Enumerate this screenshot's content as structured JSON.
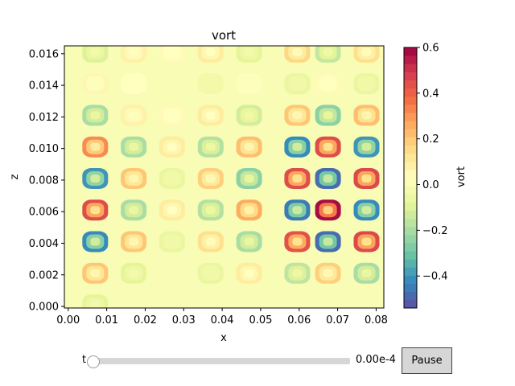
{
  "chart_data": {
    "type": "heatmap",
    "title": "vort",
    "xlabel": "x",
    "ylabel": "z",
    "xlim": [
      -0.001,
      0.082
    ],
    "ylim": [
      -0.0001,
      0.0165
    ],
    "x_ticks": [
      "0.00",
      "0.01",
      "0.02",
      "0.03",
      "0.04",
      "0.05",
      "0.06",
      "0.07",
      "0.08"
    ],
    "x_tick_values": [
      0.0,
      0.01,
      0.02,
      0.03,
      0.04,
      0.05,
      0.06,
      0.07,
      0.08
    ],
    "y_ticks": [
      "0.000",
      "0.002",
      "0.004",
      "0.006",
      "0.008",
      "0.010",
      "0.012",
      "0.014",
      "0.016"
    ],
    "y_tick_values": [
      0.0,
      0.002,
      0.004,
      0.006,
      0.008,
      0.01,
      0.012,
      0.014,
      0.016
    ],
    "colorbar": {
      "label": "vort",
      "colormap": "Spectral_r",
      "vmin": -0.54,
      "vmax": 0.6,
      "ticks": [
        "0.6",
        "0.4",
        "0.2",
        "0.0",
        "−0.2",
        "−0.4"
      ],
      "tick_values": [
        0.6,
        0.4,
        0.2,
        0.0,
        -0.2,
        -0.4
      ]
    },
    "cells": {
      "columns_x": [
        0.007,
        0.017,
        0.027,
        0.037,
        0.047,
        0.0595,
        0.0675,
        0.0775
      ],
      "rows_z": [
        0.0161,
        0.0141,
        0.0121,
        0.0101,
        0.0081,
        0.0061,
        0.0041,
        0.0021,
        0.0001
      ],
      "values": [
        [
          -0.1,
          0.08,
          0.05,
          0.1,
          -0.08,
          0.16,
          -0.15,
          0.14
        ],
        [
          0.06,
          0.03,
          0.0,
          -0.03,
          0.02,
          -0.06,
          0.05,
          -0.06
        ],
        [
          -0.2,
          0.08,
          0.05,
          0.1,
          -0.12,
          0.2,
          -0.25,
          0.22
        ],
        [
          0.32,
          -0.2,
          0.1,
          -0.18,
          0.22,
          -0.42,
          0.45,
          -0.4
        ],
        [
          -0.4,
          0.2,
          -0.06,
          0.18,
          -0.25,
          0.45,
          -0.48,
          0.46
        ],
        [
          0.45,
          -0.2,
          0.1,
          -0.18,
          0.26,
          -0.45,
          0.58,
          -0.42
        ],
        [
          -0.42,
          0.2,
          -0.06,
          0.14,
          -0.2,
          0.44,
          -0.48,
          0.46
        ],
        [
          0.2,
          -0.08,
          0.0,
          -0.06,
          0.1,
          -0.16,
          0.18,
          -0.2
        ],
        [
          -0.08,
          0.0,
          0.0,
          0.0,
          0.0,
          0.0,
          0.0,
          0.0
        ]
      ]
    }
  },
  "controls": {
    "slider_label": "t",
    "slider_value": "0.00e-4",
    "slider_fraction": 0.0,
    "pause_label": "Pause"
  }
}
